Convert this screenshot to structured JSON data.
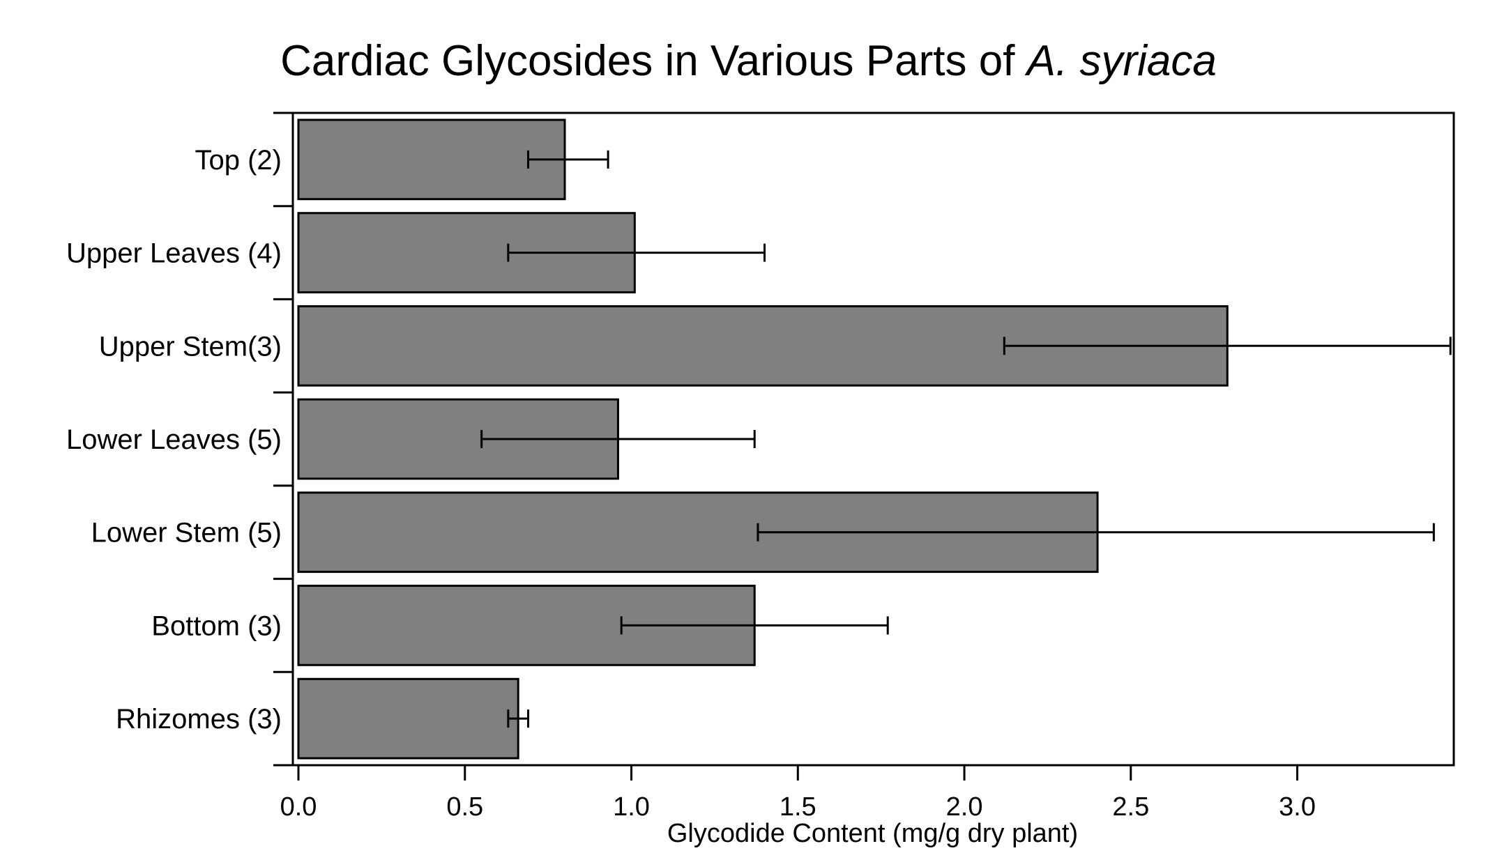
{
  "chart_data": {
    "type": "bar",
    "orientation": "horizontal",
    "title": {
      "main": "Cardiac Glycosides in Various Parts of",
      "species": "A. syriaca"
    },
    "xlabel": "Glycodide Content (mg/g dry plant)",
    "ylabel": "",
    "xlim": [
      0,
      3.47
    ],
    "xticks": [
      "0.0",
      "0.5",
      "1.0",
      "1.5",
      "2.0",
      "2.5",
      "3.0"
    ],
    "categories": [
      "Top (2)",
      "Upper Leaves (4)",
      "Upper Stem(3)",
      "Lower Leaves (5)",
      "Lower Stem (5)",
      "Bottom (3)",
      "Rhizomes (3)"
    ],
    "values": [
      0.8,
      1.01,
      2.79,
      0.96,
      2.4,
      1.37,
      0.66
    ],
    "error_low": [
      0.69,
      0.63,
      2.12,
      0.55,
      1.38,
      0.97,
      0.63
    ],
    "error_high": [
      0.93,
      1.4,
      3.46,
      1.37,
      3.41,
      1.77,
      0.69
    ],
    "bar_color": "#808080",
    "grid": false,
    "legend": "none"
  }
}
